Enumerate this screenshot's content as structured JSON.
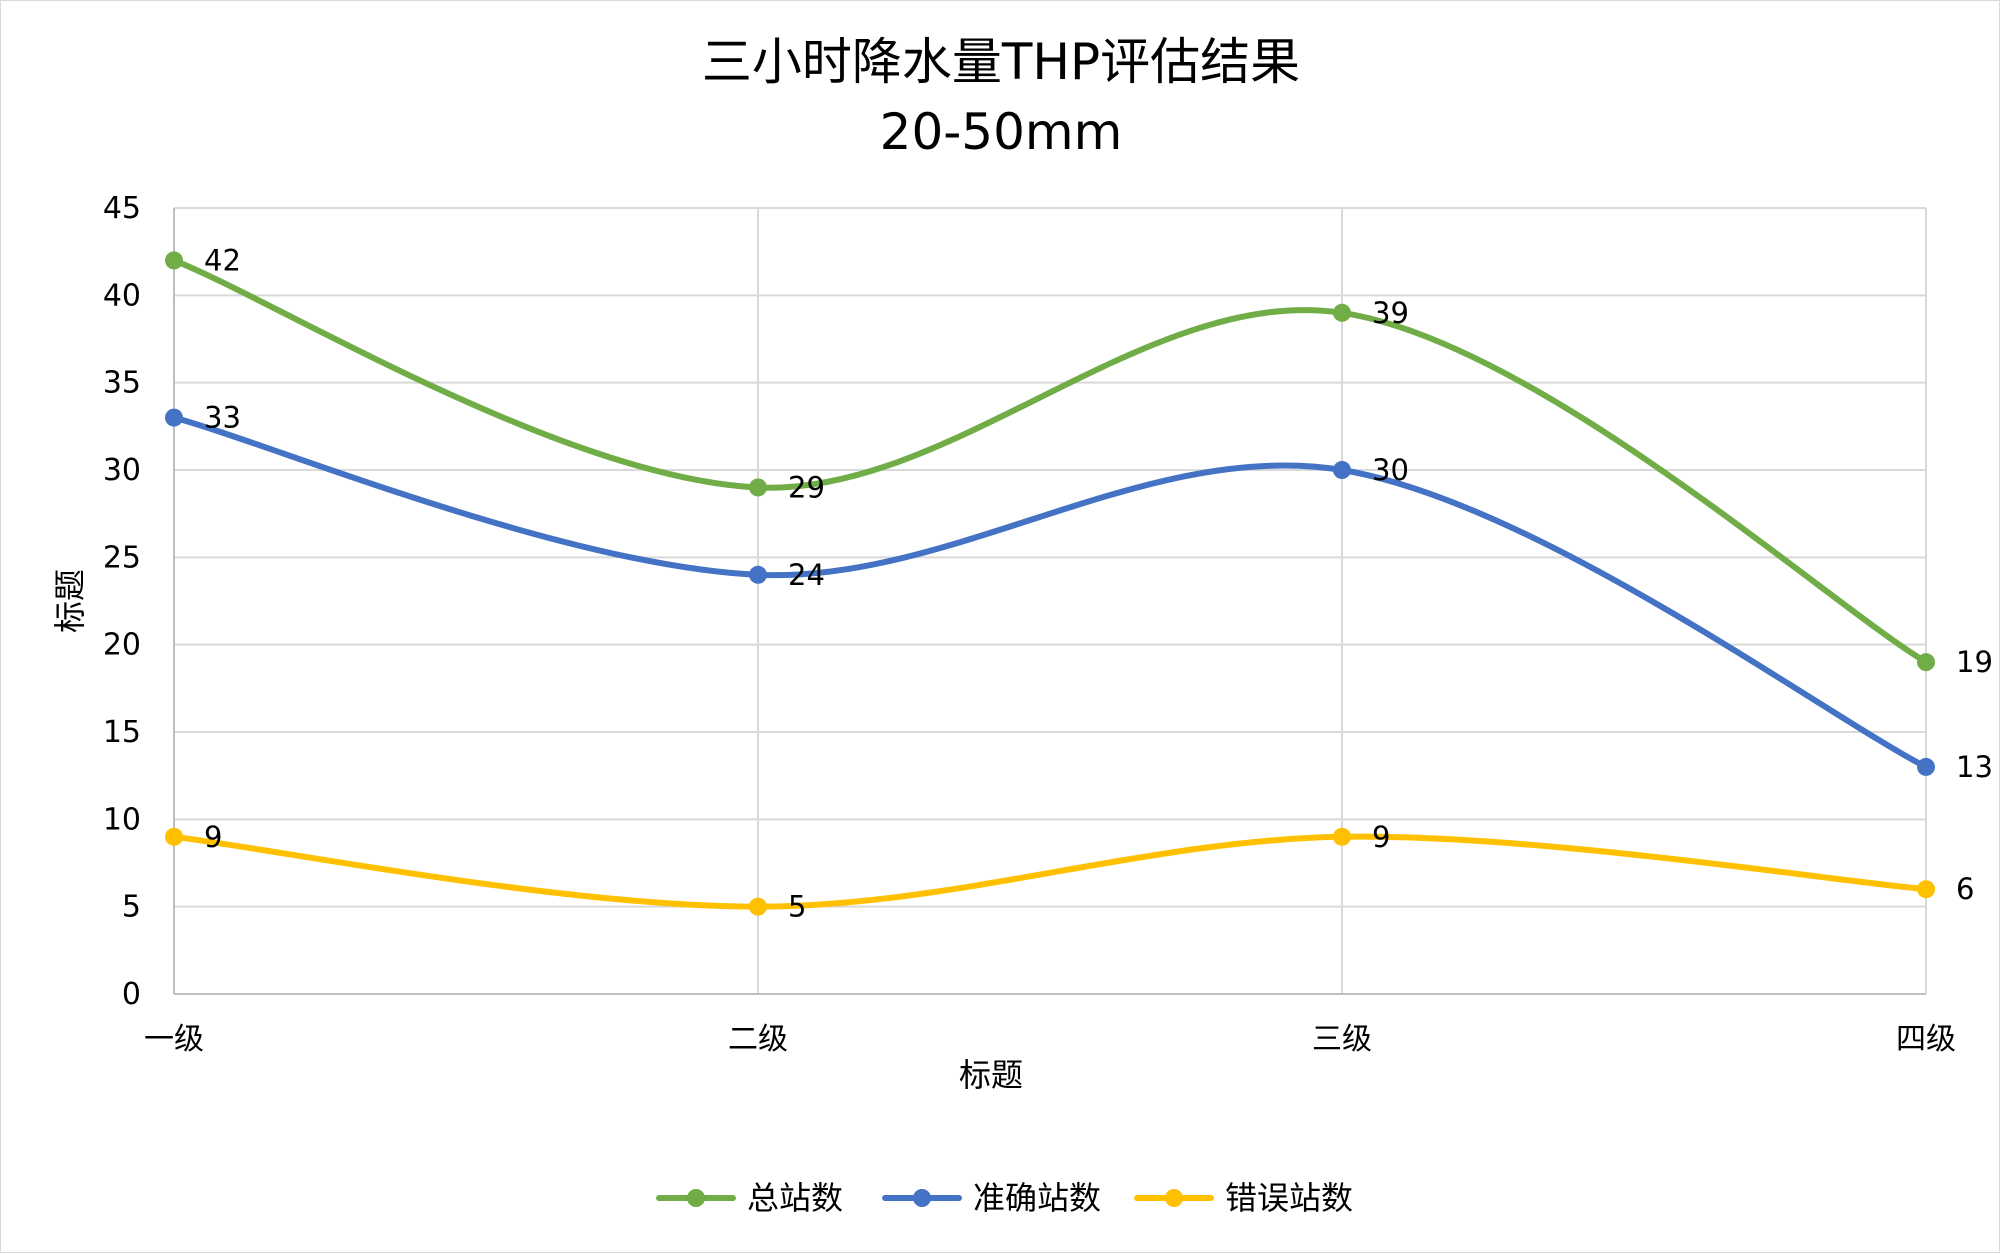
{
  "chart_data": {
    "type": "line",
    "smooth": true,
    "title": "三小时降水量THP评估结果",
    "subtitle": "20-50mm",
    "xlabel": "标题",
    "ylabel": "标题",
    "categories": [
      "一级",
      "二级",
      "三级",
      "四级"
    ],
    "ylim": [
      0,
      45
    ],
    "ytick_step": 5,
    "y_ticks": [
      "0",
      "5",
      "10",
      "15",
      "20",
      "25",
      "30",
      "35",
      "40",
      "45"
    ],
    "grid": true,
    "legend_position": "bottom",
    "series": [
      {
        "name": "总站数",
        "color": "#70ad47",
        "values": [
          42,
          29,
          39,
          19
        ]
      },
      {
        "name": "准确站数",
        "color": "#4472c4",
        "values": [
          33,
          24,
          30,
          13
        ]
      },
      {
        "name": "错误站数",
        "color": "#ffc000",
        "values": [
          9,
          5,
          9,
          6
        ]
      }
    ]
  }
}
